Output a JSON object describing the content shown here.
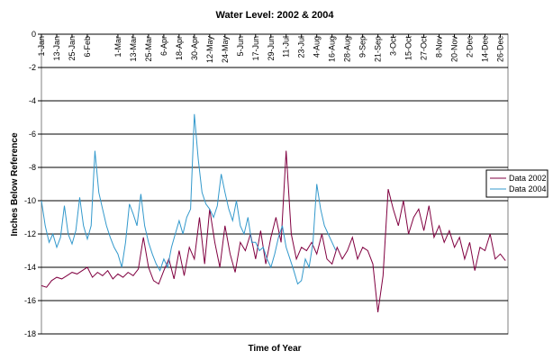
{
  "chart_data": {
    "type": "line",
    "title": "Water Level: 2002 & 2004",
    "x_label": "Time of Year",
    "y_label": "Inches Below Reference",
    "xlim": [
      1,
      367
    ],
    "xticks": [
      {
        "value": 1,
        "label": "1-Jan"
      },
      {
        "value": 13,
        "label": "13-Jan"
      },
      {
        "value": 25,
        "label": "25-Jan"
      },
      {
        "value": 37,
        "label": "6-Feb"
      },
      {
        "value": 61,
        "label": "1-Mar"
      },
      {
        "value": 73,
        "label": "13-Mar"
      },
      {
        "value": 85,
        "label": "25-Mar"
      },
      {
        "value": 97,
        "label": "6-Apr"
      },
      {
        "value": 109,
        "label": "18-Apr"
      },
      {
        "value": 121,
        "label": "30-Apr"
      },
      {
        "value": 133,
        "label": "12-May"
      },
      {
        "value": 145,
        "label": "24-May"
      },
      {
        "value": 157,
        "label": "5-Jun"
      },
      {
        "value": 169,
        "label": "17-Jun"
      },
      {
        "value": 181,
        "label": "29-Jun"
      },
      {
        "value": 193,
        "label": "11-Jul"
      },
      {
        "value": 205,
        "label": "23-Jul"
      },
      {
        "value": 217,
        "label": "4-Aug"
      },
      {
        "value": 229,
        "label": "16-Aug"
      },
      {
        "value": 241,
        "label": "28-Aug"
      },
      {
        "value": 253,
        "label": "9-Sep"
      },
      {
        "value": 265,
        "label": "21-Sep"
      },
      {
        "value": 277,
        "label": "3-Oct"
      },
      {
        "value": 289,
        "label": "15-Oct"
      },
      {
        "value": 301,
        "label": "27-Oct"
      },
      {
        "value": 313,
        "label": "8-Nov"
      },
      {
        "value": 325,
        "label": "20-Nov"
      },
      {
        "value": 337,
        "label": "2-Dec"
      },
      {
        "value": 349,
        "label": "14-Dec"
      },
      {
        "value": 361,
        "label": "26-Dec"
      }
    ],
    "ylim": [
      -18,
      0
    ],
    "yticks": [
      0,
      -2,
      -4,
      -6,
      -8,
      -10,
      -12,
      -14,
      -16,
      -18
    ],
    "grid": true,
    "legend": "right",
    "series": [
      {
        "name": "Data 2002",
        "color": "#800040",
        "x": [
          1,
          5,
          9,
          13,
          17,
          21,
          25,
          29,
          33,
          37,
          41,
          45,
          49,
          53,
          57,
          61,
          65,
          69,
          73,
          77,
          81,
          85,
          89,
          93,
          97,
          101,
          105,
          109,
          113,
          117,
          121,
          125,
          129,
          133,
          137,
          141,
          145,
          149,
          153,
          157,
          161,
          165,
          169,
          173,
          177,
          181,
          185,
          189,
          193,
          197,
          201,
          205,
          209,
          213,
          217,
          221,
          225,
          229,
          233,
          237,
          241,
          245,
          249,
          253,
          257,
          261,
          265,
          269,
          273,
          277,
          281,
          285,
          289,
          293,
          297,
          301,
          305,
          309,
          313,
          317,
          321,
          325,
          329,
          333,
          337,
          341,
          345,
          349,
          353,
          357,
          361,
          365
        ],
        "values": [
          -15.1,
          -15.2,
          -14.8,
          -14.6,
          -14.7,
          -14.5,
          -14.3,
          -14.4,
          -14.2,
          -14.0,
          -14.6,
          -14.3,
          -14.5,
          -14.2,
          -14.7,
          -14.4,
          -14.6,
          -14.3,
          -14.5,
          -14.1,
          -12.2,
          -14.0,
          -14.8,
          -15.0,
          -14.2,
          -13.5,
          -14.7,
          -13.0,
          -14.5,
          -12.8,
          -13.5,
          -11.0,
          -13.8,
          -10.5,
          -12.5,
          -14.0,
          -11.5,
          -13.2,
          -14.3,
          -12.5,
          -13.0,
          -12.0,
          -13.5,
          -11.8,
          -13.8,
          -12.2,
          -11.0,
          -12.5,
          -7.0,
          -12.0,
          -13.5,
          -12.8,
          -13.0,
          -12.5,
          -13.2,
          -12.0,
          -13.5,
          -13.8,
          -12.8,
          -13.5,
          -13.0,
          -12.2,
          -13.5,
          -12.8,
          -13.0,
          -13.8,
          -16.7,
          -14.5,
          -9.3,
          -10.5,
          -11.5,
          -10.0,
          -12.0,
          -11.0,
          -10.5,
          -11.8,
          -10.3,
          -12.2,
          -11.5,
          -12.5,
          -11.8,
          -12.8,
          -12.2,
          -13.5,
          -12.5,
          -14.2,
          -12.8,
          -13.0,
          -12.0,
          -13.5,
          -13.2,
          -13.6
        ]
      },
      {
        "name": "Data 2004",
        "color": "#3399cc",
        "x": [
          1,
          4,
          7,
          10,
          13,
          16,
          19,
          22,
          25,
          28,
          31,
          34,
          37,
          40,
          43,
          46,
          49,
          52,
          55,
          58,
          61,
          64,
          67,
          70,
          73,
          76,
          79,
          82,
          85,
          88,
          91,
          94,
          97,
          100,
          103,
          106,
          109,
          112,
          115,
          118,
          121,
          124,
          127,
          130,
          133,
          136,
          139,
          142,
          145,
          148,
          151,
          154,
          157,
          160,
          163,
          166,
          169,
          172,
          175,
          178,
          181,
          184,
          187,
          190,
          193,
          196,
          199,
          202,
          205,
          208,
          211,
          214,
          217,
          220,
          223,
          226,
          229,
          232
        ],
        "values": [
          -10.0,
          -11.5,
          -12.5,
          -12.0,
          -12.8,
          -12.2,
          -10.3,
          -12.0,
          -12.6,
          -11.8,
          -9.8,
          -11.5,
          -12.3,
          -11.5,
          -7.0,
          -9.5,
          -10.5,
          -11.5,
          -12.2,
          -12.8,
          -13.2,
          -14.0,
          -12.5,
          -10.2,
          -10.8,
          -11.5,
          -9.6,
          -11.5,
          -12.5,
          -13.2,
          -13.8,
          -14.2,
          -13.5,
          -14.0,
          -12.8,
          -12.0,
          -11.2,
          -12.0,
          -11.0,
          -10.5,
          -4.8,
          -7.5,
          -9.5,
          -10.2,
          -10.5,
          -11.0,
          -10.3,
          -8.4,
          -9.5,
          -10.5,
          -11.2,
          -10.0,
          -11.5,
          -12.0,
          -11.0,
          -12.5,
          -12.5,
          -13.0,
          -12.8,
          -13.5,
          -14.0,
          -13.2,
          -12.2,
          -11.5,
          -12.8,
          -13.5,
          -14.2,
          -15.0,
          -14.8,
          -13.5,
          -14.0,
          -12.5,
          -9.0,
          -10.5,
          -11.5,
          -12.0,
          -12.5,
          -13.0
        ]
      }
    ]
  }
}
